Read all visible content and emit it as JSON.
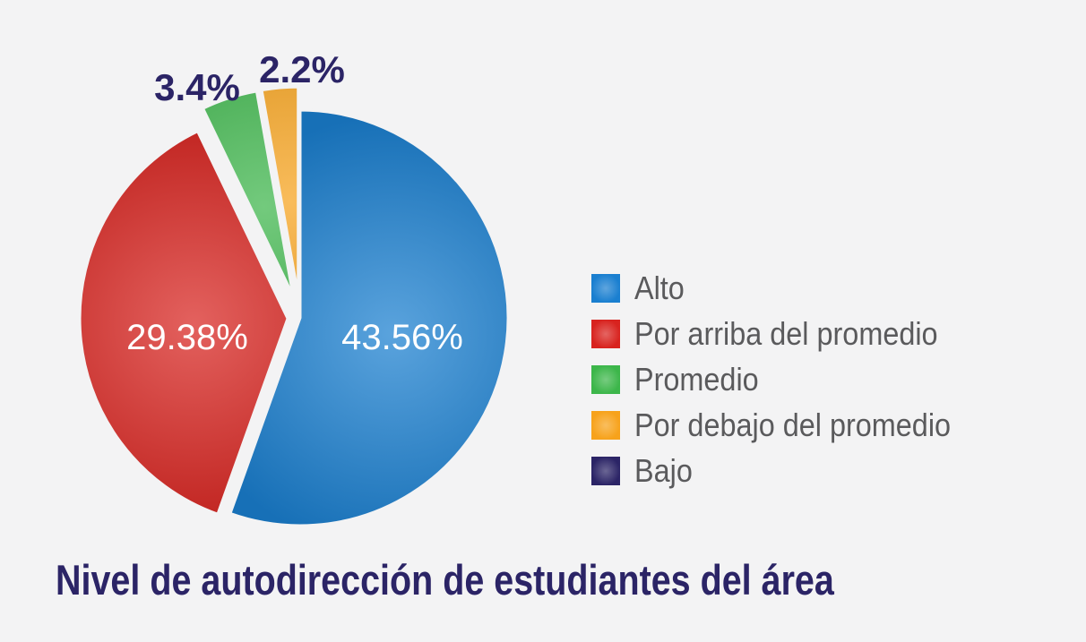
{
  "chart_data": {
    "type": "pie",
    "title": "Nivel de autodirección de estudiantes del área",
    "legend_position": "right",
    "slices": [
      {
        "label": "Alto",
        "value": 43.56,
        "display": "43.56%",
        "color": "#1a7fd0"
      },
      {
        "label": "Por arriba del promedio",
        "value": 29.38,
        "display": "29.38%",
        "color": "#d8231f"
      },
      {
        "label": "Promedio",
        "value": 3.4,
        "display": "3.4%",
        "color": "#3cb64a"
      },
      {
        "label": "Por debajo del promedio",
        "value": 2.2,
        "display": "2.2%",
        "color": "#f7a21b"
      },
      {
        "label": "Bajo",
        "value": null,
        "display": "",
        "color": "#2b2466"
      }
    ]
  }
}
